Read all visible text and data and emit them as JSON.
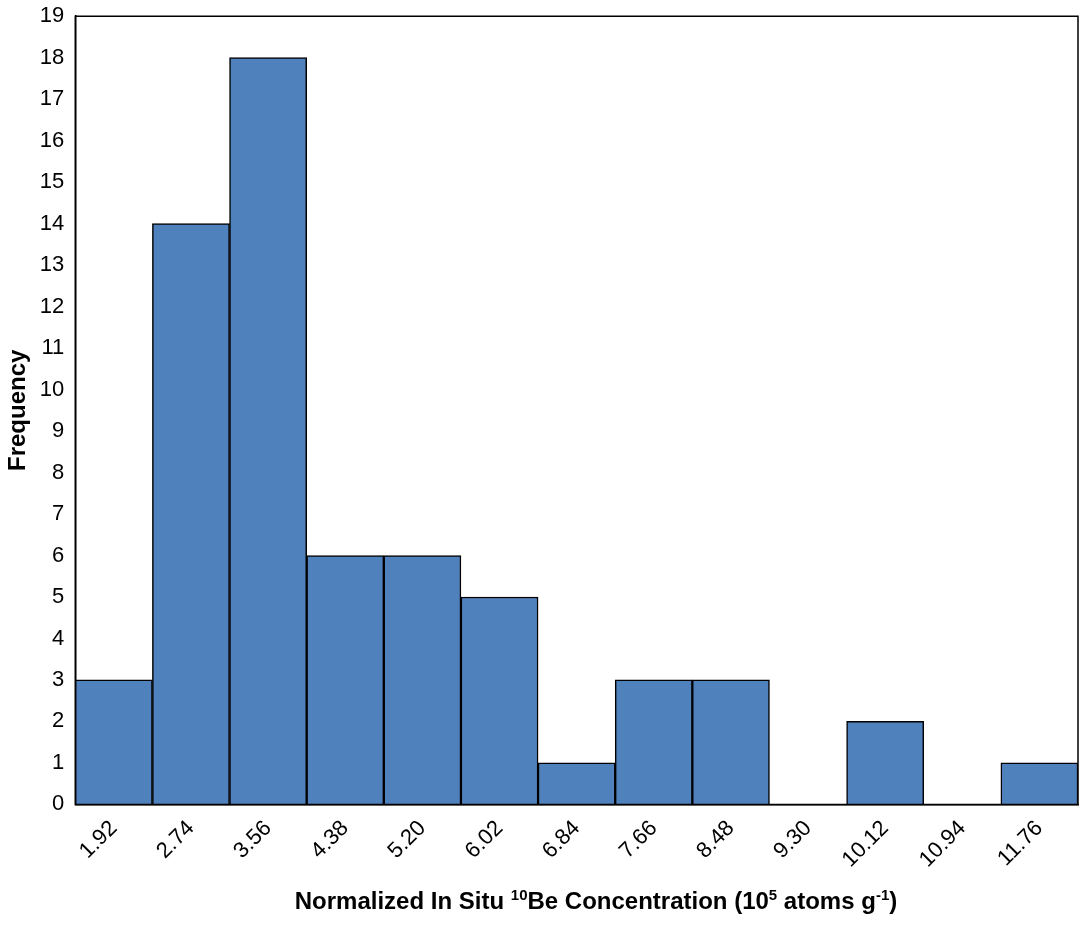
{
  "chart_data": {
    "type": "bar",
    "xlabel": "Normalized In Situ $^{10}$Be Concentration (10$^{5}$ atoms g$^{-1}$)",
    "ylabel": "Frequency",
    "categories": [
      "1.92",
      "2.74",
      "3.56",
      "4.38",
      "5.20",
      "6.02",
      "6.84",
      "7.66",
      "8.48",
      "9.30",
      "10.12",
      "10.94",
      "11.76"
    ],
    "values": [
      3,
      14,
      18,
      6,
      6,
      5,
      1,
      3,
      3,
      0,
      2,
      0,
      1
    ],
    "color": "#4f81bd",
    "ylim": [
      0,
      19
    ],
    "yticks": [
      0,
      1,
      2,
      3,
      4,
      5,
      6,
      7,
      8,
      9,
      10,
      11,
      12,
      13,
      14,
      15,
      16,
      17,
      18,
      19
    ],
    "grid": false,
    "legend": false
  }
}
